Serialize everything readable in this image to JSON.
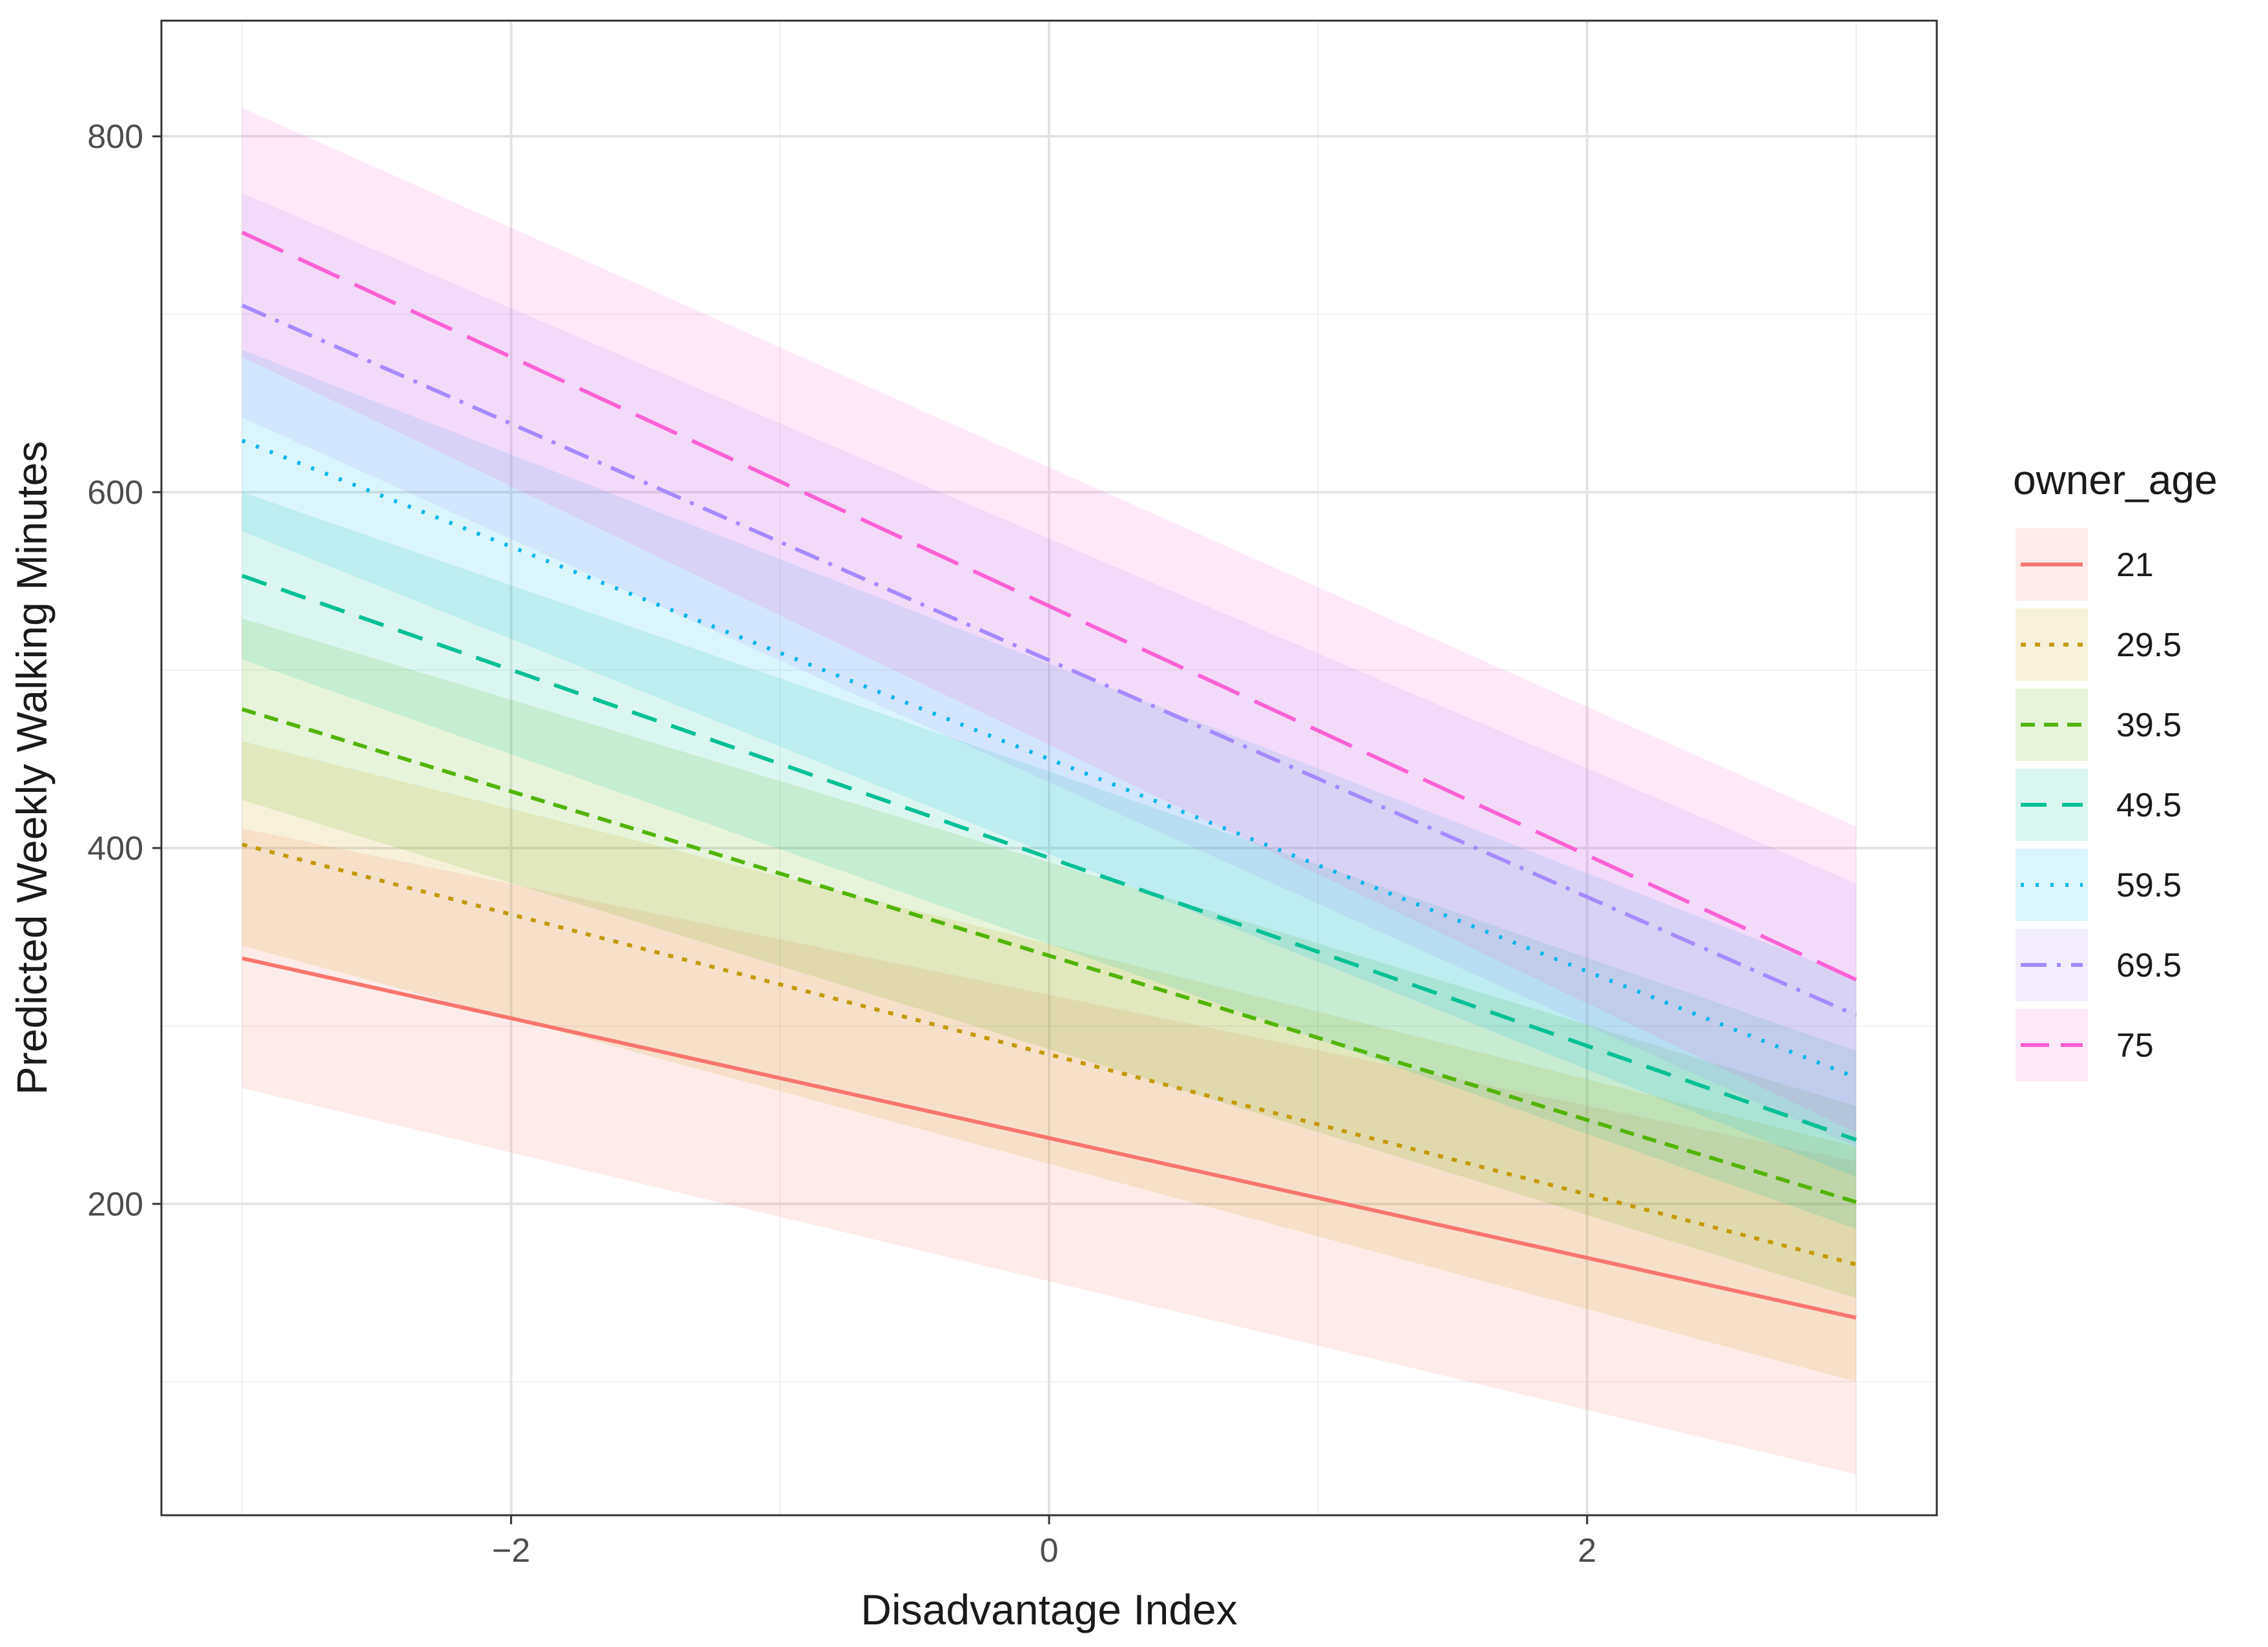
{
  "chart_data": {
    "type": "line",
    "title": "",
    "xlabel": "Disadvantage Index",
    "ylabel": "Predicted Weekly Walking Minutes",
    "xlim": [
      -3.3,
      3.3
    ],
    "ylim": [
      25,
      865
    ],
    "x_ticks": [
      -2,
      0,
      2
    ],
    "x_tick_labels": [
      "−2",
      "0",
      "2"
    ],
    "y_ticks": [
      200,
      400,
      600,
      800
    ],
    "y_tick_labels": [
      "200",
      "400",
      "600",
      "800"
    ],
    "y_minor_gridlines": [
      100,
      300,
      500,
      700
    ],
    "x_minor_gridlines": [
      -3,
      -1,
      1,
      3
    ],
    "grid": true,
    "legend": {
      "title": "owner_age",
      "position": "right"
    },
    "series": [
      {
        "name": "21",
        "color": "#F8766D",
        "dash": "solid",
        "x": [
          -3,
          3
        ],
        "y": [
          338,
          136
        ],
        "lower": [
          265,
          48
        ],
        "upper": [
          411,
          224
        ]
      },
      {
        "name": "29.5",
        "color": "#C49A00",
        "dash": "dotted",
        "x": [
          -3,
          3
        ],
        "y": [
          402,
          166
        ],
        "lower": [
          345,
          100
        ],
        "upper": [
          460,
          232
        ]
      },
      {
        "name": "39.5",
        "color": "#53B400",
        "dash": "shortdash",
        "x": [
          -3,
          3
        ],
        "y": [
          478,
          201
        ],
        "lower": [
          427,
          147
        ],
        "upper": [
          529,
          255
        ]
      },
      {
        "name": "49.5",
        "color": "#00C094",
        "dash": "dash",
        "x": [
          -3,
          3
        ],
        "y": [
          553,
          236
        ],
        "lower": [
          506,
          186
        ],
        "upper": [
          600,
          286
        ]
      },
      {
        "name": "59.5",
        "color": "#00B6EB",
        "dash": "dot",
        "x": [
          -3,
          3
        ],
        "y": [
          629,
          271
        ],
        "lower": [
          578,
          215
        ],
        "upper": [
          680,
          327
        ]
      },
      {
        "name": "69.5",
        "color": "#A58AFF",
        "dash": "dashdot",
        "x": [
          -3,
          3
        ],
        "y": [
          705,
          306
        ],
        "lower": [
          642,
          232
        ],
        "upper": [
          768,
          380
        ]
      },
      {
        "name": "75",
        "color": "#FB61D7",
        "dash": "longdash",
        "x": [
          -3,
          3
        ],
        "y": [
          746,
          326
        ],
        "lower": [
          676,
          240
        ],
        "upper": [
          816,
          412
        ]
      }
    ]
  }
}
